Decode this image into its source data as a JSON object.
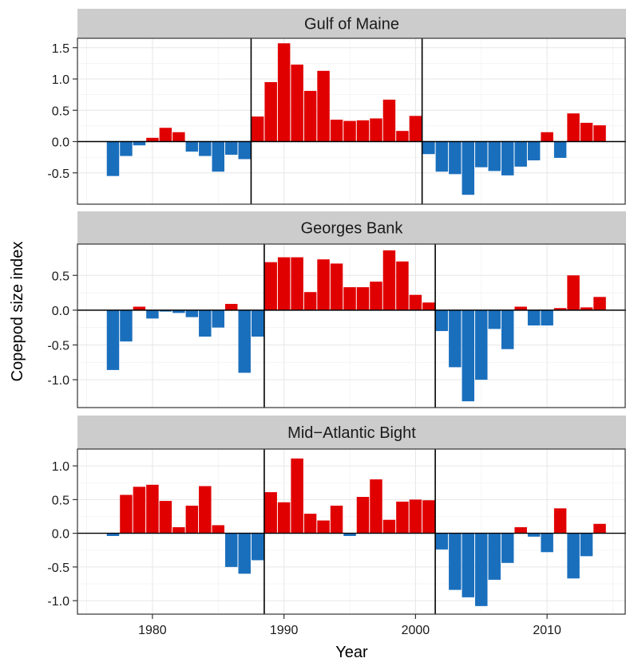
{
  "chart_data": {
    "type": "bar",
    "xlabel": "Year",
    "ylabel": "Copepod size index",
    "x_ticks": [
      1980,
      1990,
      2000,
      2010
    ],
    "colors": {
      "positive": "#e00000",
      "negative": "#1a6fbd",
      "strip": "#cccccc",
      "grid": "#ebebeb"
    },
    "panels": [
      {
        "title": "Gulf of Maine",
        "ylim": [
          -1.0,
          1.65
        ],
        "y_ticks": [
          -0.5,
          0.0,
          0.5,
          1.0,
          1.5
        ],
        "y_tick_labels": [
          "-0.5",
          "0.0",
          "0.5",
          "1.0",
          "1.5"
        ],
        "breakpoints": [
          1987.5,
          2000.5
        ],
        "years": [
          1977,
          1978,
          1979,
          1980,
          1981,
          1982,
          1983,
          1984,
          1985,
          1986,
          1987,
          1988,
          1989,
          1990,
          1991,
          1992,
          1993,
          1994,
          1995,
          1996,
          1997,
          1998,
          1999,
          2000,
          2001,
          2002,
          2003,
          2004,
          2005,
          2006,
          2007,
          2008,
          2009,
          2010,
          2011,
          2012,
          2013,
          2014
        ],
        "values": [
          -0.55,
          -0.23,
          -0.06,
          0.06,
          0.22,
          0.15,
          -0.16,
          -0.23,
          -0.48,
          -0.21,
          -0.28,
          0.4,
          0.95,
          1.57,
          1.23,
          0.81,
          1.13,
          0.35,
          0.33,
          0.34,
          0.37,
          0.67,
          0.17,
          0.41,
          -0.2,
          -0.48,
          -0.52,
          -0.85,
          -0.41,
          -0.47,
          -0.54,
          -0.4,
          -0.3,
          0.15,
          -0.26,
          0.45,
          0.3,
          0.26
        ]
      },
      {
        "title": "Georges Bank",
        "ylim": [
          -1.4,
          0.95
        ],
        "y_ticks": [
          -1.0,
          -0.5,
          0.0,
          0.5
        ],
        "y_tick_labels": [
          "-1.0",
          "-0.5",
          "0.0",
          "0.5"
        ],
        "breakpoints": [
          1988.5,
          2001.5
        ],
        "years": [
          1977,
          1978,
          1979,
          1980,
          1981,
          1982,
          1983,
          1984,
          1985,
          1986,
          1987,
          1988,
          1989,
          1990,
          1991,
          1992,
          1993,
          1994,
          1995,
          1996,
          1997,
          1998,
          1999,
          2000,
          2001,
          2002,
          2003,
          2004,
          2005,
          2006,
          2007,
          2008,
          2009,
          2010,
          2011,
          2012,
          2013,
          2014
        ],
        "values": [
          -0.86,
          -0.45,
          0.05,
          -0.12,
          -0.02,
          -0.04,
          -0.1,
          -0.38,
          -0.25,
          0.09,
          -0.9,
          -0.38,
          0.69,
          0.76,
          0.76,
          0.26,
          0.73,
          0.67,
          0.33,
          0.33,
          0.41,
          0.86,
          0.7,
          0.22,
          0.11,
          -0.3,
          -0.82,
          -1.31,
          -1.0,
          -0.27,
          -0.56,
          0.05,
          -0.22,
          -0.22,
          0.03,
          0.5,
          0.04,
          0.19
        ]
      },
      {
        "title": "Mid−Atlantic Bight",
        "ylim": [
          -1.2,
          1.25
        ],
        "y_ticks": [
          -1.0,
          -0.5,
          0.0,
          0.5,
          1.0
        ],
        "y_tick_labels": [
          "-1.0",
          "-0.5",
          "0.0",
          "0.5",
          "1.0"
        ],
        "breakpoints": [
          1988.5,
          2001.5
        ],
        "years": [
          1977,
          1978,
          1979,
          1980,
          1981,
          1982,
          1983,
          1984,
          1985,
          1986,
          1987,
          1988,
          1989,
          1990,
          1991,
          1992,
          1993,
          1994,
          1995,
          1996,
          1997,
          1998,
          1999,
          2000,
          2001,
          2002,
          2003,
          2004,
          2005,
          2006,
          2007,
          2008,
          2009,
          2010,
          2011,
          2012,
          2013,
          2014
        ],
        "values": [
          -0.04,
          0.57,
          0.69,
          0.72,
          0.48,
          0.09,
          0.41,
          0.7,
          0.12,
          -0.5,
          -0.6,
          -0.4,
          0.61,
          0.46,
          1.11,
          0.29,
          0.19,
          0.41,
          -0.04,
          0.54,
          0.8,
          0.2,
          0.47,
          0.5,
          0.49,
          -0.24,
          -0.84,
          -0.95,
          -1.08,
          -0.69,
          -0.44,
          0.09,
          -0.05,
          -0.28,
          0.37,
          -0.67,
          -0.34,
          0.14
        ]
      }
    ]
  }
}
